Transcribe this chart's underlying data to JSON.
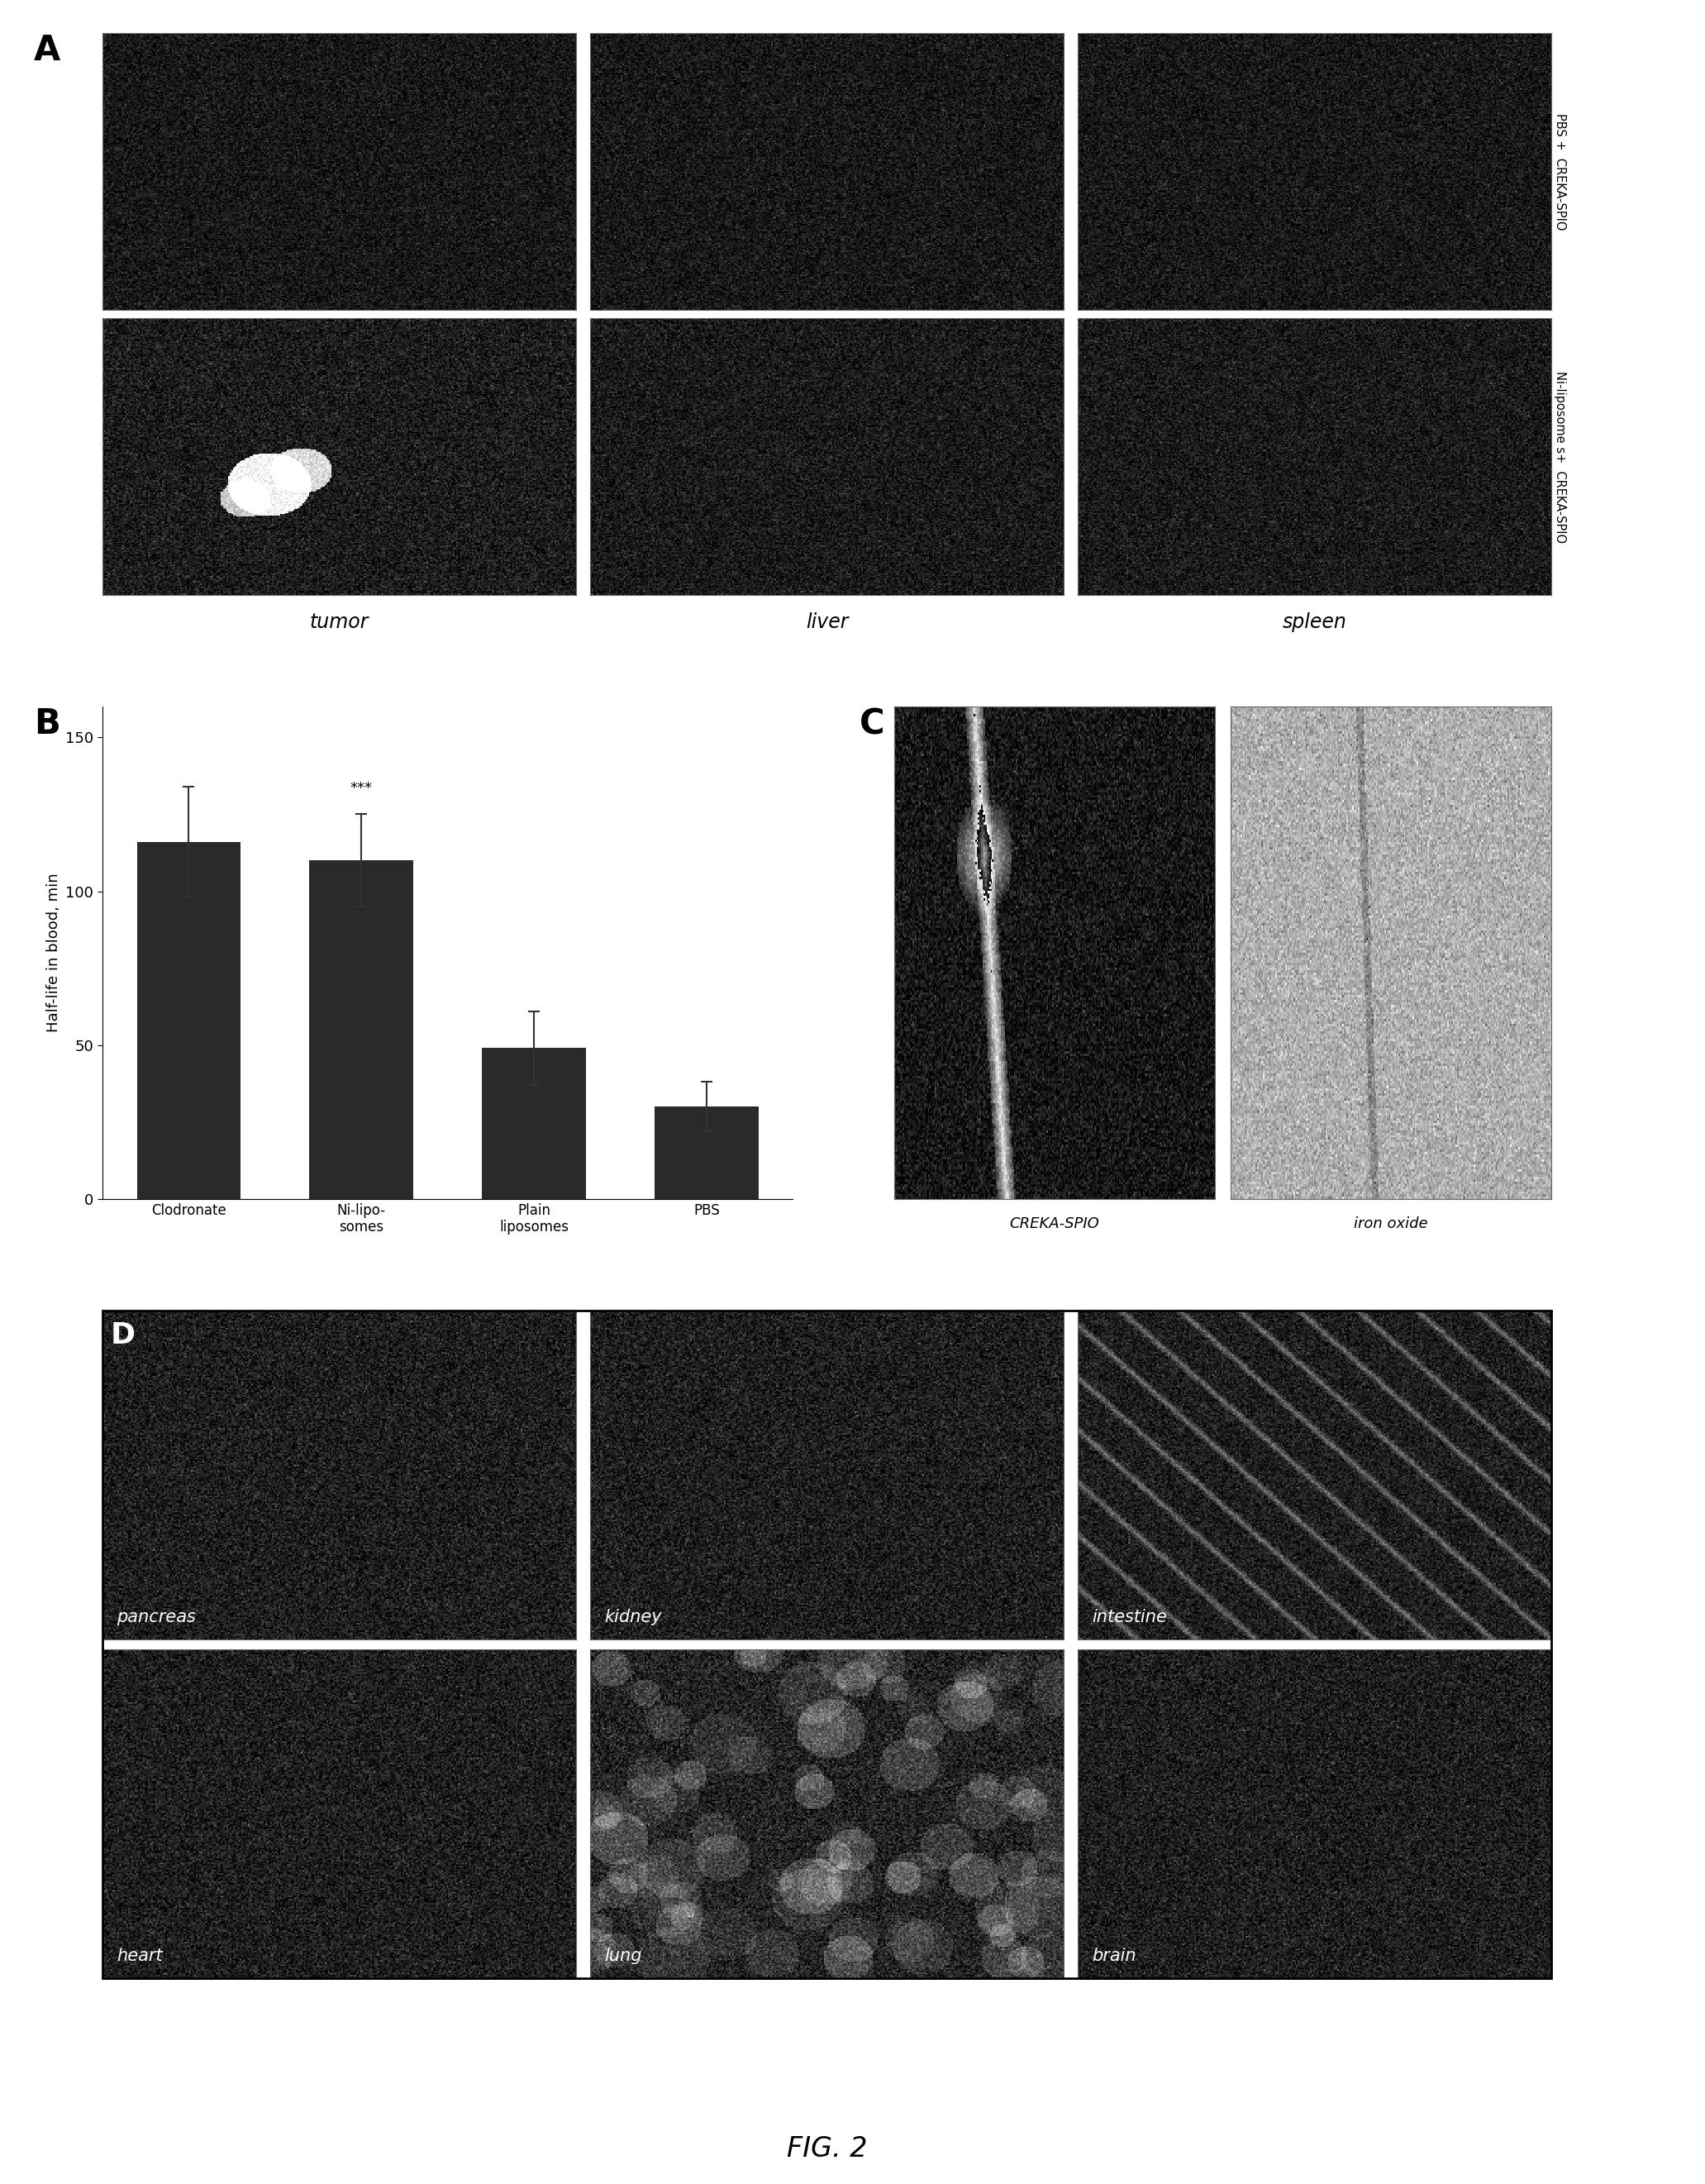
{
  "fig_label": "FIG. 2",
  "panel_A_label": "A",
  "panel_B_label": "B",
  "panel_C_label": "C",
  "panel_D_label": "D",
  "panel_A_col_labels": [
    "tumor",
    "liver",
    "spleen"
  ],
  "panel_A_row_labels_right": [
    "PBS +\nCREKA-SPIO",
    "Ni-liposome s+\nCREKA-SPIO"
  ],
  "bar_values": [
    116,
    110,
    49,
    30
  ],
  "bar_errors": [
    18,
    15,
    12,
    8
  ],
  "bar_categories": [
    "Clodronate",
    "Ni-lipo-\nsomes",
    "Plain\nliposomes",
    "PBS"
  ],
  "bar_color": "#2a2a2a",
  "ylabel_B": "Half-life in blood, min",
  "yticks_B": [
    0,
    50,
    100,
    150
  ],
  "ylim_B": [
    0,
    160
  ],
  "significance_label": "***",
  "panel_C_labels": [
    "CREKA-SPIO",
    "iron oxide"
  ],
  "panel_D_col_labels": [
    "pancreas",
    "kidney",
    "intestine",
    "heart",
    "lung",
    "brain"
  ],
  "bg_color": "#ffffff"
}
